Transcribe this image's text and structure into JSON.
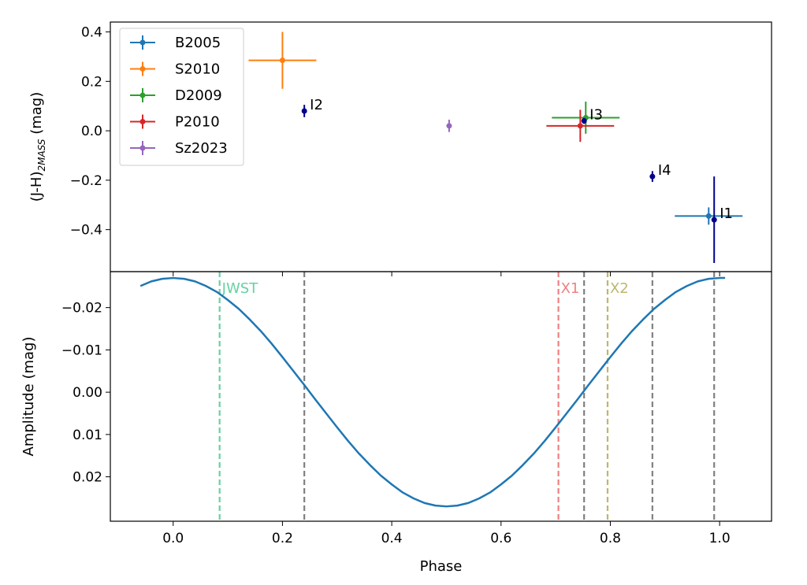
{
  "chart_data": [
    {
      "type": "scatter",
      "panel": "top",
      "ylabel": "(J-H)",
      "ylabel_sub": "2MASS",
      "ylabel_suffix": " (mag)",
      "xlim": [
        -0.115,
        1.095
      ],
      "ylim": [
        -0.57,
        0.44
      ],
      "y_ticks": [
        0.4,
        0.2,
        0.0,
        -0.2,
        -0.4
      ],
      "y_tick_labels": [
        "0.4",
        "0.2",
        "0.0",
        "−0.2",
        "−0.4"
      ],
      "legend": {
        "placement": "upper-left"
      },
      "series": [
        {
          "name": "B2005",
          "color": "#1f77b4",
          "points": [
            {
              "x": 0.98,
              "y": -0.345,
              "xerr": 0.062,
              "yerr": 0.035
            }
          ]
        },
        {
          "name": "S2010",
          "color": "#ff7f0e",
          "points": [
            {
              "x": 0.2,
              "y": 0.285,
              "xerr": 0.062,
              "yerr": 0.115
            }
          ]
        },
        {
          "name": "D2009",
          "color": "#2ca02c",
          "points": [
            {
              "x": 0.755,
              "y": 0.053,
              "xerr": 0.062,
              "yerr": 0.065
            }
          ]
        },
        {
          "name": "P2010",
          "color": "#d62728",
          "points": [
            {
              "x": 0.745,
              "y": 0.02,
              "xerr": 0.062,
              "yerr": 0.065
            }
          ]
        },
        {
          "name": "Sz2023",
          "color": "#9467bd",
          "points": [
            {
              "x": 0.505,
              "y": 0.02,
              "xerr": 0.0,
              "yerr": 0.025
            }
          ]
        }
      ],
      "annotated_points": [
        {
          "label": "I1",
          "x": 0.99,
          "y": -0.36,
          "yerr": 0.175,
          "color": "#00008b"
        },
        {
          "label": "I2",
          "x": 0.24,
          "y": 0.08,
          "yerr": 0.025,
          "color": "#00008b"
        },
        {
          "label": "I3",
          "x": 0.752,
          "y": 0.04,
          "yerr": 0.012,
          "color": "#00008b"
        },
        {
          "label": "I4",
          "x": 0.877,
          "y": -0.185,
          "yerr": 0.022,
          "color": "#00008b"
        }
      ]
    },
    {
      "type": "line",
      "panel": "bottom",
      "xlabel": "Phase",
      "ylabel": "Amplitude (mag)",
      "y_inverted": true,
      "xlim": [
        -0.115,
        1.095
      ],
      "ylim": [
        -0.0285,
        0.0305
      ],
      "x_ticks": [
        0.0,
        0.2,
        0.4,
        0.6,
        0.8,
        1.0
      ],
      "x_tick_labels": [
        "0.0",
        "0.2",
        "0.4",
        "0.6",
        "0.8",
        "1.0"
      ],
      "y_ticks": [
        -0.02,
        -0.01,
        0.0,
        0.01,
        0.02
      ],
      "y_tick_labels": [
        "−0.02",
        "−0.01",
        "0.00",
        "0.01",
        "0.02"
      ],
      "curve": {
        "color": "#1f77b4",
        "amplitude": 0.027,
        "x": [
          -0.06,
          -0.04,
          -0.02,
          0.0,
          0.02,
          0.04,
          0.06,
          0.08,
          0.1,
          0.12,
          0.14,
          0.16,
          0.18,
          0.2,
          0.22,
          0.24,
          0.26,
          0.28,
          0.3,
          0.32,
          0.34,
          0.36,
          0.38,
          0.4,
          0.42,
          0.44,
          0.46,
          0.48,
          0.5,
          0.52,
          0.54,
          0.56,
          0.58,
          0.6,
          0.62,
          0.64,
          0.66,
          0.68,
          0.7,
          0.72,
          0.74,
          0.76,
          0.78,
          0.8,
          0.82,
          0.84,
          0.86,
          0.88,
          0.9,
          0.92,
          0.94,
          0.96,
          0.98,
          1.0,
          1.01
        ],
        "y": [
          -0.0251,
          -0.0262,
          -0.0268,
          -0.027,
          -0.0268,
          -0.0262,
          -0.0251,
          -0.0237,
          -0.0218,
          -0.0197,
          -0.0172,
          -0.0145,
          -0.0115,
          -0.0083,
          -0.005,
          -0.0017,
          0.0017,
          0.005,
          0.0083,
          0.0115,
          0.0145,
          0.0172,
          0.0197,
          0.0218,
          0.0237,
          0.0251,
          0.0262,
          0.0268,
          0.027,
          0.0268,
          0.0262,
          0.0251,
          0.0237,
          0.0218,
          0.0197,
          0.0172,
          0.0145,
          0.0115,
          0.0083,
          0.005,
          0.0017,
          -0.0017,
          -0.005,
          -0.0083,
          -0.0115,
          -0.0145,
          -0.0172,
          -0.0197,
          -0.0218,
          -0.0237,
          -0.0251,
          -0.0262,
          -0.0268,
          -0.027,
          -0.027
        ]
      },
      "vlines": [
        {
          "x": 0.085,
          "color": "#66d2a0",
          "label": "JWST"
        },
        {
          "x": 0.24,
          "color": "#808080",
          "label": ""
        },
        {
          "x": 0.705,
          "color": "#f08080",
          "label": "X1"
        },
        {
          "x": 0.752,
          "color": "#808080",
          "label": ""
        },
        {
          "x": 0.795,
          "color": "#bdb76b",
          "label": "X2"
        },
        {
          "x": 0.877,
          "color": "#808080",
          "label": ""
        },
        {
          "x": 0.99,
          "color": "#808080",
          "label": ""
        }
      ]
    }
  ]
}
